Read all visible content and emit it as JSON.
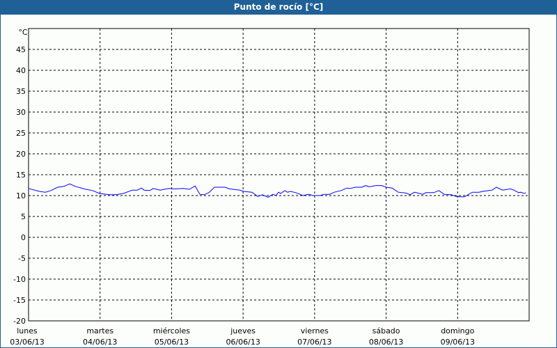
{
  "window": {
    "title": "Punto de rocío [°C]"
  },
  "colors": {
    "titlebar": "#1f6096",
    "series": "#0000ff",
    "grid": "#000000"
  },
  "chart_data": {
    "type": "line",
    "title": "Punto de rocío [°C]",
    "ylabel": "°C",
    "ylim": [
      -20,
      50
    ],
    "yticks": [
      "45",
      "40",
      "35",
      "30",
      "25",
      "20",
      "15",
      "10",
      "5",
      "0",
      "-5",
      "-10",
      "-15",
      "-20"
    ],
    "xlim_hours": [
      0,
      168
    ],
    "grid": true,
    "xticks": [
      {
        "day": "lunes",
        "date": "03/06/13"
      },
      {
        "day": "martes",
        "date": "04/06/13"
      },
      {
        "day": "miércoles",
        "date": "05/06/13"
      },
      {
        "day": "jueves",
        "date": "06/06/13"
      },
      {
        "day": "viernes",
        "date": "07/06/13"
      },
      {
        "day": "sábado",
        "date": "08/06/13"
      },
      {
        "day": "domingo",
        "date": "09/06/13"
      }
    ],
    "series": [
      {
        "x": [
          0,
          3.7,
          5.6,
          7.5,
          9.8,
          11.9,
          13.8,
          15.7,
          19.2,
          21.5,
          23.8,
          27.1,
          29.4,
          31.8,
          34.8,
          36.5,
          37.9,
          38.8,
          40.7,
          41.8,
          44.2,
          47.0,
          48.8,
          51.9,
          54.0,
          55.9,
          57.5,
          58.9,
          60.5,
          62.4,
          65.9,
          67.5,
          71.0,
          72.2,
          75.0,
          76.9,
          78.5,
          80.4,
          82.0,
          83.0,
          83.9,
          84.6,
          86.0,
          86.9,
          87.9,
          89.7,
          92.1,
          93.9,
          95.6,
          97.9,
          99.1,
          101.0,
          102.6,
          104.9,
          106.8,
          108.0,
          109.6,
          111.9,
          113.1,
          114.3,
          116.6,
          118.5,
          120.1,
          122.0,
          124.1,
          126.7,
          128.1,
          129.5,
          131.3,
          132.3,
          133.4,
          136.0,
          137.7,
          139.5,
          141.9,
          143.5,
          145.1,
          146.3,
          148.9,
          151.2,
          152.4,
          154.5,
          155.6,
          157.0,
          159.1,
          161.7,
          162.9,
          164.5,
          165.2,
          166.4,
          166.9
        ],
        "y": [
          11.7,
          11.0,
          10.8,
          11.2,
          12.0,
          12.2,
          12.8,
          12.2,
          11.5,
          11.2,
          10.5,
          10.2,
          10.2,
          10.5,
          11.3,
          11.3,
          11.8,
          11.3,
          11.2,
          11.7,
          11.3,
          11.7,
          11.6,
          11.7,
          11.5,
          12.3,
          10.3,
          10.2,
          10.7,
          12.0,
          12.0,
          11.6,
          11.3,
          11.0,
          10.8,
          9.8,
          10.2,
          9.6,
          10.3,
          10.0,
          10.8,
          10.5,
          11.2,
          10.8,
          11.0,
          10.7,
          10.0,
          10.3,
          10.0,
          10.0,
          10.3,
          10.3,
          10.8,
          11.2,
          11.8,
          11.7,
          12.0,
          12.0,
          12.4,
          12.1,
          12.4,
          12.4,
          12.0,
          11.8,
          10.8,
          10.6,
          10.2,
          10.8,
          10.5,
          10.3,
          10.7,
          10.7,
          11.2,
          10.3,
          10.2,
          9.8,
          9.7,
          9.7,
          10.8,
          10.8,
          11.0,
          11.2,
          11.3,
          12.0,
          11.3,
          11.6,
          11.3,
          10.7,
          10.8,
          10.5,
          10.7
        ]
      }
    ]
  }
}
